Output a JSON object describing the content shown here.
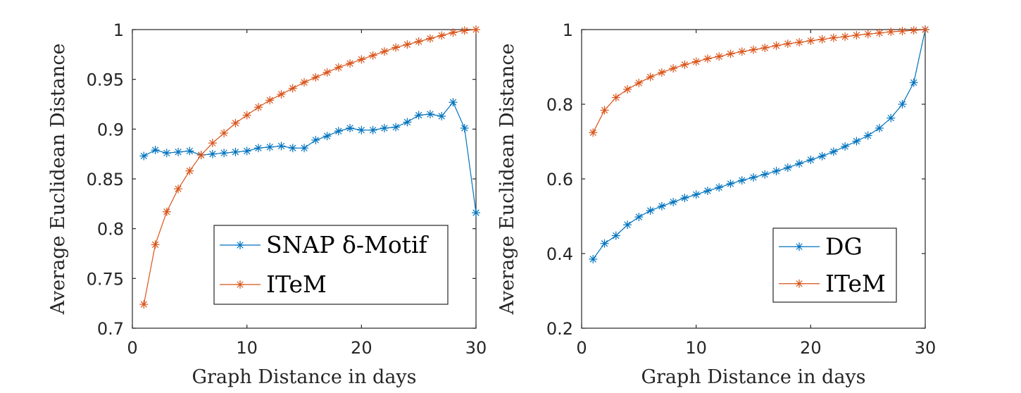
{
  "chart_data": [
    {
      "type": "line",
      "title": "",
      "xlabel": "Graph Distance in days",
      "ylabel": "Average Euclidean Distance",
      "xlim": [
        0,
        30
      ],
      "ylim": [
        0.7,
        1
      ],
      "xticks": [
        0,
        10,
        20,
        30
      ],
      "yticks": [
        0.7,
        0.75,
        0.8,
        0.85,
        0.9,
        0.95,
        1
      ],
      "ytick_labels": [
        "0.7",
        "0.75",
        "0.8",
        "0.85",
        "0.9",
        "0.95",
        "1"
      ],
      "grid": false,
      "legend_position": "bottom-right",
      "marker": "asterisk",
      "x": [
        1,
        2,
        3,
        4,
        5,
        6,
        7,
        8,
        9,
        10,
        11,
        12,
        13,
        14,
        15,
        16,
        17,
        18,
        19,
        20,
        21,
        22,
        23,
        24,
        25,
        26,
        27,
        28,
        29,
        30
      ],
      "series": [
        {
          "name": "SNAP δ-Motif",
          "color": "#0072BD",
          "values": [
            0.873,
            0.879,
            0.876,
            0.877,
            0.878,
            0.874,
            0.875,
            0.876,
            0.877,
            0.878,
            0.881,
            0.882,
            0.883,
            0.881,
            0.881,
            0.889,
            0.893,
            0.898,
            0.901,
            0.899,
            0.899,
            0.901,
            0.902,
            0.907,
            0.914,
            0.915,
            0.913,
            0.927,
            0.901,
            0.816
          ]
        },
        {
          "name": "ITeM",
          "color": "#D95319",
          "values": [
            0.724,
            0.784,
            0.817,
            0.84,
            0.858,
            0.874,
            0.886,
            0.896,
            0.906,
            0.914,
            0.922,
            0.929,
            0.935,
            0.941,
            0.947,
            0.952,
            0.957,
            0.962,
            0.966,
            0.97,
            0.974,
            0.978,
            0.982,
            0.985,
            0.988,
            0.991,
            0.994,
            0.997,
            0.999,
            1.0
          ]
        }
      ]
    },
    {
      "type": "line",
      "title": "",
      "xlabel": "Graph Distance in days",
      "ylabel": "Average Euclidean Distance",
      "xlim": [
        0,
        30
      ],
      "ylim": [
        0.2,
        1
      ],
      "xticks": [
        0,
        10,
        20,
        30
      ],
      "yticks": [
        0.2,
        0.4,
        0.6,
        0.8,
        1
      ],
      "ytick_labels": [
        "0.2",
        "0.4",
        "0.6",
        "0.8",
        "1"
      ],
      "grid": false,
      "legend_position": "bottom-right",
      "marker": "asterisk",
      "x": [
        1,
        2,
        3,
        4,
        5,
        6,
        7,
        8,
        9,
        10,
        11,
        12,
        13,
        14,
        15,
        16,
        17,
        18,
        19,
        20,
        21,
        22,
        23,
        24,
        25,
        26,
        27,
        28,
        29,
        30
      ],
      "series": [
        {
          "name": "DG",
          "color": "#0072BD",
          "values": [
            0.385,
            0.427,
            0.448,
            0.477,
            0.498,
            0.515,
            0.527,
            0.538,
            0.549,
            0.558,
            0.568,
            0.577,
            0.587,
            0.596,
            0.604,
            0.612,
            0.621,
            0.63,
            0.641,
            0.651,
            0.661,
            0.673,
            0.687,
            0.701,
            0.716,
            0.736,
            0.763,
            0.8,
            0.858,
            1.0
          ]
        },
        {
          "name": "ITeM",
          "color": "#D95319",
          "values": [
            0.724,
            0.784,
            0.818,
            0.84,
            0.857,
            0.873,
            0.885,
            0.896,
            0.906,
            0.914,
            0.922,
            0.928,
            0.935,
            0.941,
            0.946,
            0.951,
            0.957,
            0.962,
            0.966,
            0.97,
            0.974,
            0.978,
            0.981,
            0.985,
            0.988,
            0.991,
            0.994,
            0.996,
            0.998,
            1.0
          ]
        }
      ]
    }
  ]
}
